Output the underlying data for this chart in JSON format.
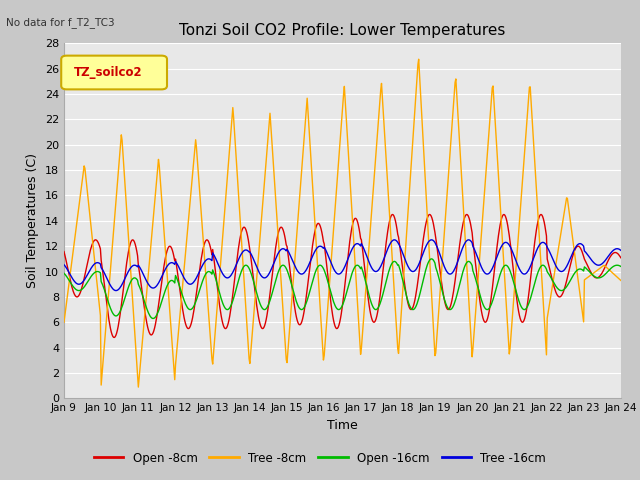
{
  "title": "Tonzi Soil CO2 Profile: Lower Temperatures",
  "subtitle": "No data for f_T2_TC3",
  "xlabel": "Time",
  "ylabel": "Soil Temperatures (C)",
  "ylim": [
    0,
    28
  ],
  "yticks": [
    0,
    2,
    4,
    6,
    8,
    10,
    12,
    14,
    16,
    18,
    20,
    22,
    24,
    26,
    28
  ],
  "x_tick_labels": [
    "Jan 9",
    "Jan 10",
    "Jan 11",
    "Jan 12",
    "Jan 13",
    "Jan 14",
    "Jan 15",
    "Jan 16",
    "Jan 17",
    "Jan 18",
    "Jan 19",
    "Jan 20",
    "Jan 21",
    "Jan 22",
    "Jan 23",
    "Jan 24"
  ],
  "legend_box_label": "TZ_soilco2",
  "legend_box_color": "#ffff99",
  "legend_box_border": "#ccaa00",
  "colors": {
    "open_8cm": "#dd0000",
    "tree_8cm": "#ffaa00",
    "open_16cm": "#00bb00",
    "tree_16cm": "#0000dd"
  },
  "bg_color": "#e8e8e8",
  "grid_color": "#ffffff",
  "fig_bg": "#c8c8c8",
  "title_fontsize": 11,
  "axis_fontsize": 9,
  "tick_fontsize": 8
}
